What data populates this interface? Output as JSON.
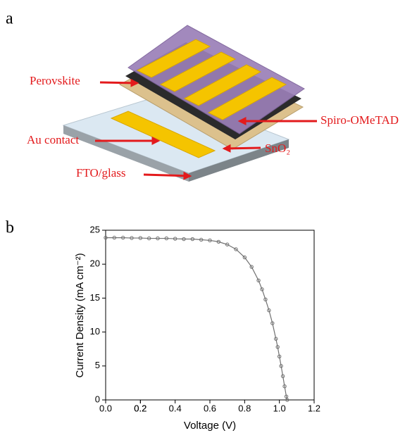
{
  "diagram": {
    "panel_label": "a",
    "labels": [
      "Perovskite",
      "Spiro-OMeTAD",
      "Au contact",
      "SnO₂",
      "FTO/glass"
    ]
  },
  "chart_data": {
    "type": "line",
    "panel_label": "b",
    "x_label": "Voltage (V)",
    "y_label": "Current Density (mA cm⁻²)",
    "x": [
      0,
      0.05,
      0.1,
      0.15,
      0.2,
      0.25,
      0.3,
      0.35,
      0.4,
      0.45,
      0.5,
      0.55,
      0.6,
      0.65,
      0.7,
      0.75,
      0.8,
      0.84,
      0.88,
      0.9,
      0.92,
      0.94,
      0.96,
      0.98,
      0.99,
      1.0,
      1.01,
      1.02,
      1.03,
      1.04,
      1.045
    ],
    "values": [
      23.9,
      23.9,
      23.9,
      23.85,
      23.85,
      23.8,
      23.8,
      23.8,
      23.75,
      23.7,
      23.7,
      23.6,
      23.5,
      23.3,
      22.9,
      22.2,
      21.0,
      19.6,
      17.6,
      16.3,
      14.8,
      13.2,
      11.3,
      9.0,
      7.8,
      6.4,
      5.0,
      3.5,
      2.0,
      0.5,
      0
    ],
    "color": "#707070",
    "xlim": [
      0,
      1.2
    ],
    "ylim": [
      0,
      25
    ],
    "xticks": [
      {
        "value": 0,
        "label": "0.0"
      },
      0.2,
      0.4,
      0.6,
      0.8,
      {
        "value": 1,
        "label": "1.0"
      },
      0.2,
      1.2
    ],
    "yticks": [
      0,
      5,
      10,
      15,
      20,
      25
    ]
  }
}
